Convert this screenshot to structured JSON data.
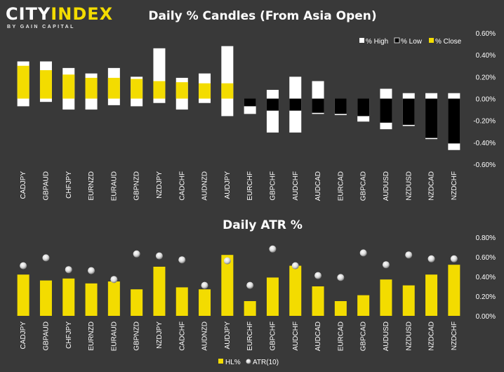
{
  "brand": {
    "name_part1": "CITY",
    "name_part2": "INDEX",
    "tagline": "BY GAIN CAPITAL"
  },
  "colors": {
    "background": "#393939",
    "high": "#ffffff",
    "low": "#000000",
    "close": "#f3dc00",
    "atr": "#d9d9d9"
  },
  "chart_data": [
    {
      "type": "bar",
      "title": "Daily % Candles (From Asia Open)",
      "categories": [
        "CADJPY",
        "GBPAUD",
        "CHFJPY",
        "EURNZD",
        "EURAUD",
        "GBPNZD",
        "NZDJPY",
        "CADCHF",
        "AUDNZD",
        "AUDJPY",
        "EURCHF",
        "GBPCHF",
        "AUDCHF",
        "AUDCAD",
        "EURCAD",
        "GBPCAD",
        "AUDUSD",
        "NZDUSD",
        "NZDCAD",
        "NZDCHF"
      ],
      "series": [
        {
          "name": "% High",
          "values": [
            0.34,
            0.34,
            0.28,
            0.23,
            0.28,
            0.2,
            0.46,
            0.19,
            0.23,
            0.48,
            0.0,
            0.08,
            0.2,
            0.16,
            0.0,
            0.0,
            0.09,
            0.05,
            0.05,
            0.05
          ]
        },
        {
          "name": "% Low",
          "values": [
            -0.07,
            -0.03,
            -0.1,
            -0.1,
            -0.06,
            -0.07,
            -0.04,
            -0.1,
            -0.04,
            -0.16,
            -0.14,
            -0.31,
            -0.31,
            -0.14,
            -0.15,
            -0.21,
            -0.28,
            -0.25,
            -0.37,
            -0.47
          ]
        },
        {
          "name": "% Close",
          "values": [
            0.3,
            0.26,
            0.22,
            0.19,
            0.19,
            0.18,
            0.16,
            0.15,
            0.14,
            0.14,
            -0.07,
            -0.11,
            -0.11,
            -0.13,
            -0.14,
            -0.16,
            -0.22,
            -0.24,
            -0.36,
            -0.41
          ]
        }
      ],
      "ylim": [
        -0.6,
        0.6
      ],
      "yticks": [
        "0.60%",
        "0.40%",
        "0.20%",
        "0.00%",
        "-0.20%",
        "-0.40%",
        "-0.60%"
      ],
      "legend_position": "top-right",
      "grid": false
    },
    {
      "type": "bar",
      "title": "Daily ATR %",
      "categories": [
        "CADJPY",
        "GBPAUD",
        "CHFJPY",
        "EURNZD",
        "EURAUD",
        "GBPNZD",
        "NZDJPY",
        "CADCHF",
        "AUDNZD",
        "AUDJPY",
        "EURCHF",
        "GBPCHF",
        "AUDCHF",
        "AUDCAD",
        "EURCAD",
        "GBPCAD",
        "AUDUSD",
        "NZDUSD",
        "NZDCAD",
        "NZDCHF"
      ],
      "series": [
        {
          "name": "HL%",
          "values": [
            0.42,
            0.36,
            0.38,
            0.33,
            0.35,
            0.27,
            0.5,
            0.29,
            0.27,
            0.62,
            0.15,
            0.39,
            0.51,
            0.3,
            0.15,
            0.21,
            0.37,
            0.31,
            0.42,
            0.52
          ]
        },
        {
          "name": "ATR(10)",
          "values": [
            0.51,
            0.59,
            0.47,
            0.46,
            0.37,
            0.63,
            0.61,
            0.57,
            0.31,
            0.56,
            0.31,
            0.68,
            0.51,
            0.41,
            0.39,
            0.64,
            0.52,
            0.62,
            0.58,
            0.58
          ]
        }
      ],
      "ylim": [
        0,
        0.8
      ],
      "yticks": [
        "0.80%",
        "0.60%",
        "0.40%",
        "0.20%",
        "0.00%"
      ],
      "legend_position": "bottom",
      "grid": false
    }
  ]
}
